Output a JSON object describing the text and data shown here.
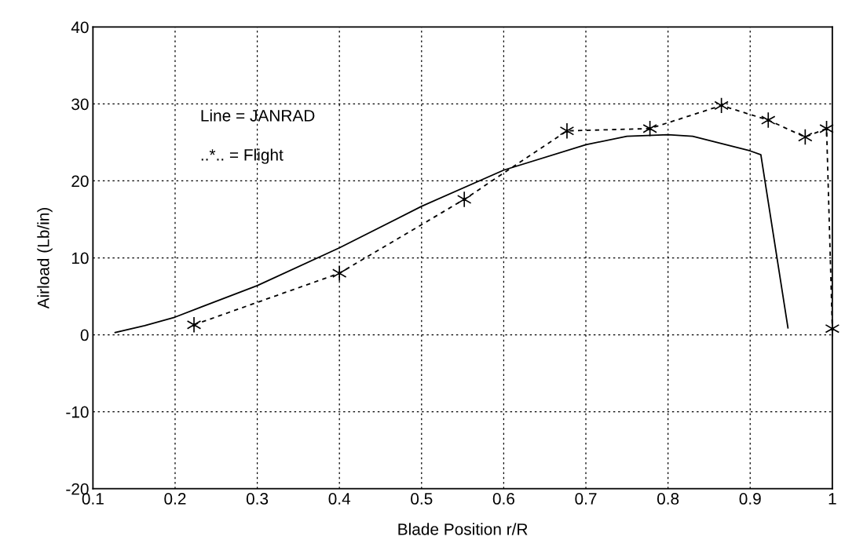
{
  "chart_data": {
    "type": "line",
    "xlabel": "Blade Position r/R",
    "ylabel": "Airload (Lb/in)",
    "xlim": [
      0.1,
      1.0
    ],
    "ylim": [
      -20,
      40
    ],
    "xticks": [
      0.1,
      0.2,
      0.3,
      0.4,
      0.5,
      0.6,
      0.7,
      0.8,
      0.9,
      {
        "value": 1.0,
        "label": "1"
      }
    ],
    "yticks": [
      -20,
      -10,
      0,
      10,
      20,
      30,
      40
    ],
    "grid": true,
    "annotations": [
      "Line = JANRAD",
      "..*.. = Flight"
    ],
    "series": [
      {
        "color": "#000000",
        "line_style": "solid",
        "marker": "none",
        "x": [
          0.127,
          0.163,
          0.2,
          0.3,
          0.4,
          0.5,
          0.6,
          0.7,
          0.75,
          0.8,
          0.83,
          0.9,
          0.913,
          0.946
        ],
        "values": [
          0.3,
          1.2,
          2.3,
          6.4,
          11.3,
          16.7,
          21.4,
          24.7,
          25.8,
          26.0,
          25.8,
          23.9,
          23.4,
          0.9
        ]
      },
      {
        "color": "#000000",
        "line_style": "dashed",
        "marker": "cross",
        "x": [
          0.223,
          0.4,
          0.552,
          0.677,
          0.778,
          0.865,
          0.922,
          0.967,
          0.993,
          1.0
        ],
        "values": [
          1.3,
          8.0,
          17.6,
          26.5,
          26.8,
          29.8,
          27.9,
          25.7,
          26.8,
          0.8
        ]
      }
    ]
  }
}
